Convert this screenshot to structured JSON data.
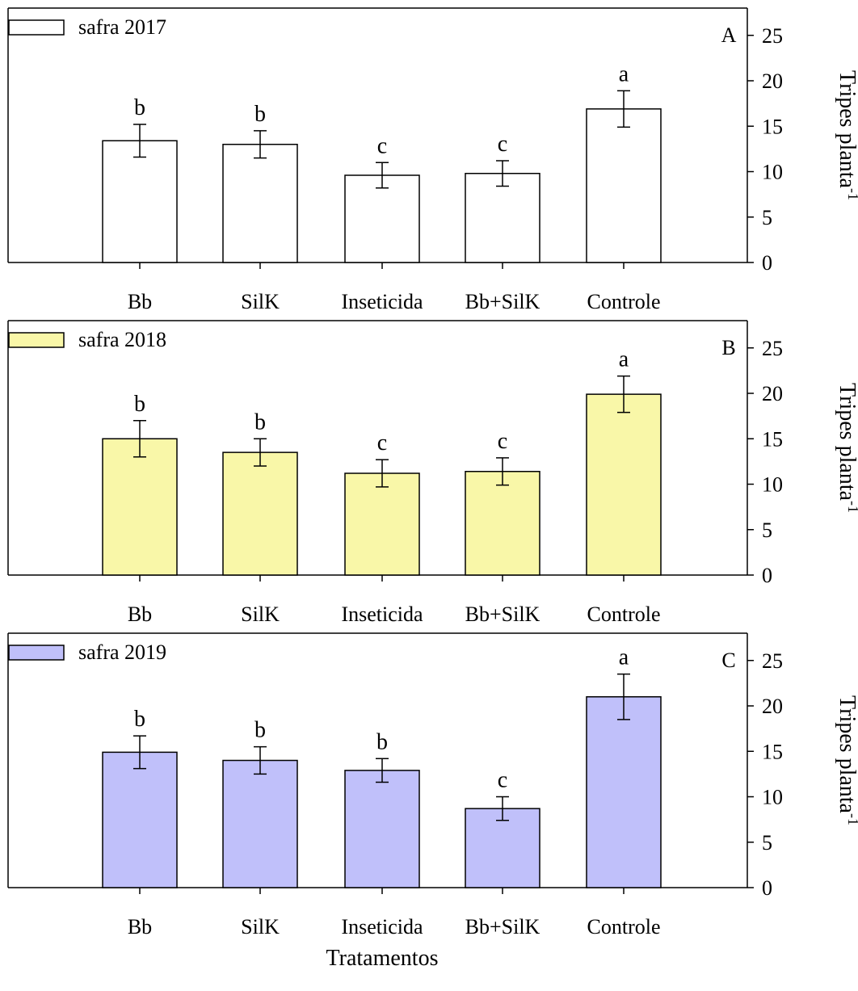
{
  "chart_data": [
    {
      "type": "bar",
      "panel_letter": "A",
      "legend": "safra 2017",
      "bar_color": "#ffffff",
      "categories": [
        "Bb",
        "SilK",
        "Inseticida",
        "Bb+SilK",
        "Controle"
      ],
      "values": [
        13.4,
        13.0,
        9.6,
        9.8,
        16.9
      ],
      "errors": [
        1.8,
        1.5,
        1.4,
        1.4,
        2.0
      ],
      "letters": [
        "b",
        "b",
        "c",
        "c",
        "a"
      ],
      "ylabel": "Tripes planta",
      "ylabel_sup": "-1",
      "ylim": [
        0,
        28
      ],
      "yticks": [
        "0",
        "5",
        "10",
        "15",
        "20",
        "25"
      ],
      "ytick_values": [
        0,
        5,
        10,
        15,
        20,
        25
      ],
      "grid": false,
      "legend_position": "top-left",
      "y_axis_side": "right"
    },
    {
      "type": "bar",
      "panel_letter": "B",
      "legend": "safra 2018",
      "bar_color": "#f9f7a8",
      "categories": [
        "Bb",
        "SilK",
        "Inseticida",
        "Bb+SilK",
        "Controle"
      ],
      "values": [
        15.0,
        13.5,
        11.2,
        11.4,
        19.9
      ],
      "errors": [
        2.0,
        1.5,
        1.5,
        1.5,
        2.0
      ],
      "letters": [
        "b",
        "b",
        "c",
        "c",
        "a"
      ],
      "ylabel": "Tripes planta",
      "ylabel_sup": "-1",
      "ylim": [
        0,
        28
      ],
      "yticks": [
        "0",
        "5",
        "10",
        "15",
        "20",
        "25"
      ],
      "ytick_values": [
        0,
        5,
        10,
        15,
        20,
        25
      ],
      "grid": false,
      "legend_position": "top-left",
      "y_axis_side": "right"
    },
    {
      "type": "bar",
      "panel_letter": "C",
      "legend": "safra 2019",
      "bar_color": "#c0c0fa",
      "categories": [
        "Bb",
        "SilK",
        "Inseticida",
        "Bb+SilK",
        "Controle"
      ],
      "values": [
        14.9,
        14.0,
        12.9,
        8.7,
        21.0
      ],
      "errors": [
        1.8,
        1.5,
        1.3,
        1.3,
        2.5
      ],
      "letters": [
        "b",
        "b",
        "b",
        "c",
        ""
      ],
      "ylabel": "Tripes planta",
      "ylabel_sup": "-1",
      "ylim": [
        0,
        28
      ],
      "yticks": [
        "0",
        "5",
        "10",
        "15",
        "20",
        "25"
      ],
      "ytick_values": [
        0,
        5,
        10,
        15,
        20,
        25
      ],
      "grid": false,
      "legend_position": "top-left",
      "y_axis_side": "right",
      "extra_letter": "a"
    }
  ],
  "xlabel": "Tratamentos"
}
